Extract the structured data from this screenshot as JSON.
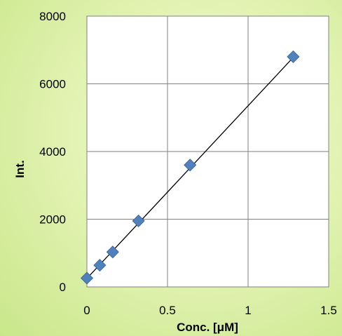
{
  "chart_data": {
    "type": "scatter",
    "title": "",
    "xlabel": "Conc. [μM]",
    "ylabel": "Int.",
    "xlim": [
      0,
      1.5
    ],
    "ylim": [
      0,
      8000
    ],
    "x_ticks": [
      0,
      0.5,
      1,
      1.5
    ],
    "x_tick_labels": [
      "0",
      "0.5",
      "1",
      "1.5"
    ],
    "y_ticks": [
      0,
      2000,
      4000,
      6000,
      8000
    ],
    "y_tick_labels": [
      "0",
      "2000",
      "4000",
      "6000",
      "8000"
    ],
    "grid": true,
    "series": [
      {
        "marker": "diamond",
        "color": "#4f81bd",
        "x": [
          0,
          0.08,
          0.16,
          0.32,
          0.64,
          1.28
        ],
        "y": [
          260,
          640,
          1030,
          1950,
          3600,
          6800
        ]
      }
    ],
    "trendline": {
      "type": "linear",
      "color": "#000000",
      "x": [
        0,
        1.28
      ],
      "y": [
        250,
        6780
      ]
    }
  }
}
